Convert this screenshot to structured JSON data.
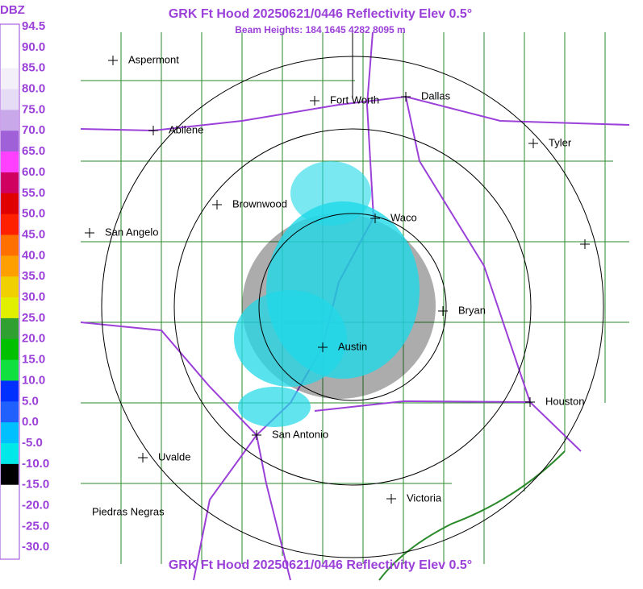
{
  "header": {
    "title": "GRK Ft Hood 20250621/0446 Reflectivity Elev 0.5°",
    "subtitle": "Beam Heights: 184 1645 4282 8095 m"
  },
  "legend": {
    "title": "DBZ",
    "labels": [
      "94.5",
      "90.0",
      "85.0",
      "80.0",
      "75.0",
      "70.0",
      "65.0",
      "60.0",
      "55.0",
      "50.0",
      "45.0",
      "40.0",
      "35.0",
      "30.0",
      "25.0",
      "20.0",
      "15.0",
      "10.0",
      "5.0",
      "0.0",
      "-5.0",
      "-10.0",
      "-15.0",
      "-20.0",
      "-25.0",
      "-30.0"
    ],
    "colors": [
      "#ffffff",
      "#ffffff",
      "#f4f0fa",
      "#e6dcf5",
      "#c8a8e8",
      "#a060d8",
      "#ff40ff",
      "#d00060",
      "#e00000",
      "#ff2000",
      "#ff7000",
      "#ffa000",
      "#f0d000",
      "#e0f000",
      "#30a030",
      "#00c000",
      "#10e040",
      "#0030ff",
      "#2060ff",
      "#00c0ff",
      "#00e8e8",
      "#000000",
      "#ffffff",
      "#ffffff",
      "#ffffff"
    ]
  },
  "cities": [
    {
      "name": "Aspermont"
    },
    {
      "name": "Fort Worth"
    },
    {
      "name": "Dallas"
    },
    {
      "name": "Abilene"
    },
    {
      "name": "Tyler"
    },
    {
      "name": "Brownwood"
    },
    {
      "name": "Waco"
    },
    {
      "name": "San Angelo"
    },
    {
      "name": "Bryan"
    },
    {
      "name": "Austin"
    },
    {
      "name": "Houston"
    },
    {
      "name": "San Antonio"
    },
    {
      "name": "Uvalde"
    },
    {
      "name": "Victoria"
    },
    {
      "name": "Piedras Negras"
    }
  ],
  "footer": {
    "title": "GRK Ft Hood 20250621/0446 Reflectivity Elev 0.5°"
  }
}
